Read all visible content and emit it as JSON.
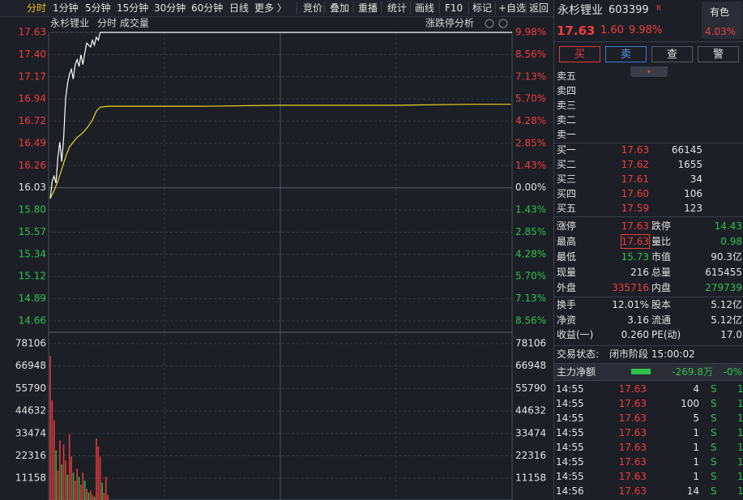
{
  "toolbar": {
    "periods": [
      "分时",
      "1分钟",
      "5分钟",
      "15分钟",
      "30分钟",
      "60分钟",
      "日线",
      "更多 〉"
    ],
    "tools": [
      "竞价",
      "叠加",
      "重播",
      "统计",
      "画线",
      "F10",
      "标记",
      "+自选",
      "返回"
    ]
  },
  "chart": {
    "stock_name": "永杉锂业",
    "label": "分时 成交量",
    "analysis": "涨跌停分析",
    "price_ticks": [
      "17.63",
      "17.40",
      "17.17",
      "16.94",
      "16.72",
      "16.49",
      "16.26",
      "16.03",
      "15.80",
      "15.57",
      "15.34",
      "15.12",
      "14.89",
      "14.66"
    ],
    "pct_ticks": [
      "9.98%",
      "8.56%",
      "7.13%",
      "5.70%",
      "4.28%",
      "2.85%",
      "1.43%",
      "0.00%",
      "1.43%",
      "2.85%",
      "4.28%",
      "5.70%",
      "7.13%",
      "8.56%"
    ],
    "volume_ticks": [
      78106,
      66948,
      55790,
      44632,
      33474,
      22316,
      11158
    ],
    "price": {
      "color": "#ffffff",
      "x": [
        0,
        1,
        2,
        3,
        4,
        5,
        6,
        7,
        8,
        9,
        10,
        11,
        12,
        13,
        14,
        15,
        16,
        17,
        18,
        19,
        20,
        21,
        22,
        23,
        24,
        25,
        26
      ],
      "values": [
        15.92,
        16.1,
        16.15,
        16.08,
        16.35,
        16.5,
        16.3,
        16.55,
        16.95,
        17.1,
        17.2,
        17.25,
        17.15,
        17.3,
        17.35,
        17.28,
        17.4,
        17.3,
        17.42,
        17.52,
        17.5,
        17.48,
        17.55,
        17.5,
        17.58,
        17.55,
        17.63
      ]
    },
    "average": {
      "color": "#e8d820",
      "x": [
        0,
        2,
        4,
        6,
        8,
        10,
        12,
        14,
        16,
        18,
        20,
        22,
        24,
        26,
        30,
        40,
        60,
        80,
        120,
        150,
        180,
        220,
        240
      ],
      "values": [
        15.92,
        16.0,
        16.1,
        16.22,
        16.35,
        16.45,
        16.5,
        16.55,
        16.58,
        16.62,
        16.67,
        16.73,
        16.82,
        16.86,
        16.87,
        16.87,
        16.87,
        16.87,
        16.88,
        16.88,
        16.88,
        16.89,
        16.89
      ]
    },
    "volume": {
      "values": [
        72000,
        50000,
        40000,
        25000,
        15000,
        30000,
        18000,
        28000,
        20000,
        13000,
        33000,
        22000,
        14000,
        10000,
        16000,
        12000,
        8000,
        14000,
        10000,
        6000,
        4000,
        5000,
        3000,
        2000,
        31000,
        27000,
        22000,
        9000,
        4000,
        12000,
        3000
      ],
      "colors": [
        "#e03a3a",
        "#e03a3a",
        "#e03a3a",
        "#2fb84a",
        "#e03a3a",
        "#e03a3a",
        "#2fb84a",
        "#e03a3a",
        "#e03a3a",
        "#2fb84a",
        "#e03a3a",
        "#e03a3a",
        "#2fb84a",
        "#e03a3a",
        "#e03a3a",
        "#2fb84a",
        "#e03a3a",
        "#e03a3a",
        "#2fb84a",
        "#e03a3a",
        "#2fb84a",
        "#e03a3a",
        "#e03a3a",
        "#2fb84a",
        "#e03a3a",
        "#e03a3a",
        "#e03a3a",
        "#2fb84a",
        "#e03a3a",
        "#e03a3a",
        "#e03a3a"
      ]
    }
  },
  "quote": {
    "name": "永杉锂业",
    "code": "603399",
    "badge": "R",
    "sector": "有色",
    "sector_change": "4.03%",
    "price": "17.63",
    "change": "1.60",
    "change_pct": "9.98%"
  },
  "actions": [
    "买",
    "卖",
    "查",
    "警"
  ],
  "asks": [
    "卖五",
    "卖四",
    "卖三",
    "卖二",
    "卖一"
  ],
  "bids": [
    [
      "买一",
      "17.63",
      66145
    ],
    [
      "买二",
      "17.62",
      1655
    ],
    [
      "买三",
      "17.61",
      34
    ],
    [
      "买四",
      "17.60",
      106
    ],
    [
      "买五",
      "17.59",
      123
    ]
  ],
  "stats": [
    [
      "涨停",
      "17.63",
      "跌停",
      "14.43"
    ],
    [
      "最高",
      "17.63",
      "量比",
      "0.98"
    ],
    [
      "最低",
      "15.73",
      "市值",
      "90.3亿"
    ],
    [
      "现量",
      "216",
      "总量",
      "615455"
    ],
    [
      "外盘",
      "335716",
      "内盘",
      "279739"
    ]
  ],
  "fundamentals": [
    [
      "换手",
      "12.01%",
      "股本",
      "5.12亿"
    ],
    [
      "净资",
      "3.16",
      "流通",
      "5.12亿"
    ],
    [
      "收益(一)",
      "0.260",
      "PE(动)",
      "17.0"
    ]
  ],
  "status": {
    "label": "交易状态:",
    "value": "闭市阶段 15:00:02"
  },
  "main_flow": {
    "label": "主力净额",
    "value": "-269.8万",
    "pct": "-0%"
  },
  "trades": [
    [
      "14:55",
      "17.63",
      4,
      "S",
      1
    ],
    [
      "14:55",
      "17.63",
      100,
      "S",
      1
    ],
    [
      "14:55",
      "17.63",
      5,
      "S",
      1
    ],
    [
      "14:55",
      "17.63",
      1,
      "S",
      1
    ],
    [
      "14:55",
      "17.63",
      1,
      "S",
      1
    ],
    [
      "14:55",
      "17.63",
      1,
      "S",
      1
    ],
    [
      "14:55",
      "17.63",
      1,
      "S",
      1
    ],
    [
      "14:56",
      "17.63",
      14,
      "S",
      1
    ]
  ]
}
